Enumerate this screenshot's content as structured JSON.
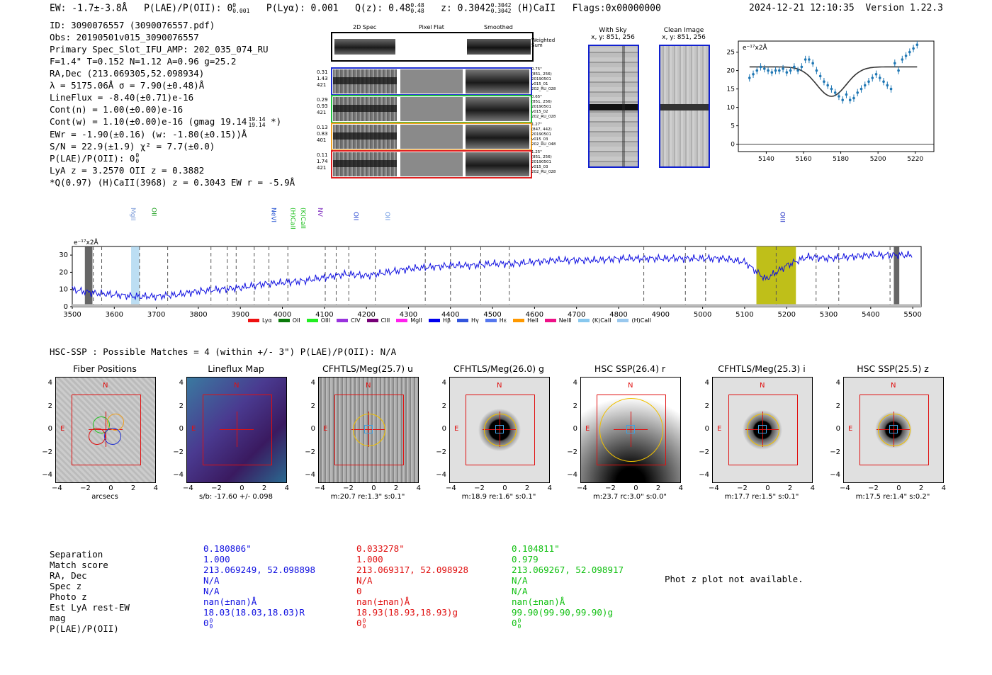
{
  "header": {
    "ew": "EW: -1.7±-3.8Å",
    "plae": "P(LAE)/P(OII): 0",
    "plae_sup": "0",
    "plae_sub": "0.001",
    "plya": "P(Lyα): 0.001",
    "qz": "Q(z): 0.48",
    "qz_sup": "0.48",
    "qz_sub": "0.48",
    "z": "z: 0.3042",
    "z_sup": "0.3042",
    "z_sub": "0.3042",
    "hcaii": "(H)CaII",
    "flags": "Flags:0x00000000",
    "timestamp": "2024-12-21 12:10:35",
    "version": "Version 1.22.3"
  },
  "info": [
    "ID: 3090076557 (3090076557.pdf)",
    "Obs: 20190501v015_3090076557",
    "Primary Spec_Slot_IFU_AMP: 202_035_074_RU",
    "F=1.4\"  T=0.152  N=1.12  A=0.96  g=25.2",
    "RA,Dec (213.069305,52.098934)",
    "λ = 5175.06Å  σ = 7.90(±0.48)Å",
    "LineFlux = -8.40(±0.71)e-16",
    "Cont(n) = 1.00(±0.00)e-16",
    "Cont(w) = 1.10(±0.00)e-16 (gmag 19.14",
    "EWr = -1.90(±0.16) (w: -1.80(±0.15))Å",
    "S/N = 22.9(±1.9)  χ² = 7.7(±0.0)",
    "P(LAE)/P(OII): 0",
    "LyA z = 3.2570  OII z = 0.3882",
    "*Q(0.97) (H)CaII(3968) z = 0.3043  EW r = -5.9Å"
  ],
  "info_extras": {
    "gmag_sup": "19.14",
    "gmag_sub": "19.14",
    "gmag_close": "*)",
    "plae_sup": "0",
    "plae_sub": "0"
  },
  "strips": {
    "headers": [
      "2D Spec",
      "Pixel Flat",
      "Smoothed"
    ],
    "weighted_label": "Weighted Sum",
    "rows": [
      {
        "left": [
          "0.31",
          "1.43",
          "421"
        ],
        "right": [
          "0.75\"",
          "(851, 256)",
          "20190501",
          "v015_01",
          "202_RU_028"
        ],
        "color": "#2030d0"
      },
      {
        "left": [
          "0.29",
          "0.93",
          "421"
        ],
        "right": [
          "0.65\"",
          "(851, 256)",
          "20190501",
          "v015_02",
          "202_RU_028"
        ],
        "color": "#20c040"
      },
      {
        "left": [
          "0.13",
          "0.83",
          "401"
        ],
        "right": [
          "1.27\"",
          "(847, 442)",
          "20190501",
          "v015_03",
          "202_RU_048"
        ],
        "color": "#f0a020"
      },
      {
        "left": [
          "0.11",
          "1.74",
          "421"
        ],
        "right": [
          "1.25\"",
          "(851, 256)",
          "20190501",
          "v015_03",
          "202_RU_028"
        ],
        "color": "#e02020"
      }
    ]
  },
  "cutouts_2d": {
    "with_sky": "With Sky",
    "clean": "Clean Image",
    "coords": "x, y: 851, 256"
  },
  "line_fit": {
    "ylabel": "e⁻¹⁷x2Å",
    "xticks": [
      "5140",
      "5160",
      "5180",
      "5200",
      "5220"
    ],
    "yticks": [
      "0",
      "5",
      "10",
      "15",
      "20",
      "25"
    ]
  },
  "spectrum": {
    "ylabel": "e⁻¹⁷x2Å",
    "xticks": [
      "3500",
      "3600",
      "3700",
      "3800",
      "3900",
      "4000",
      "4100",
      "4200",
      "4300",
      "4400",
      "4500",
      "4600",
      "4700",
      "4800",
      "4900",
      "5000",
      "5100",
      "5200",
      "5300",
      "5400",
      "5500"
    ],
    "yticks": [
      "0",
      "10",
      "20",
      "30"
    ],
    "lines_top": [
      {
        "name": "MgII",
        "color": "#7a9ad8"
      },
      {
        "name": "OII",
        "color": "#20a020"
      },
      {
        "name": "NeVI",
        "color": "#2050d0"
      },
      {
        "name": "(H)CaII",
        "color": "#20c020"
      },
      {
        "name": "(K)CaII",
        "color": "#20c020"
      },
      {
        "name": "NV",
        "color": "#8030c0"
      },
      {
        "name": "OII",
        "color": "#2040d0"
      },
      {
        "name": "OII",
        "color": "#6090e0"
      },
      {
        "name": "OIII",
        "color": "#1020c0"
      }
    ],
    "legend": [
      {
        "name": "Lyα",
        "color": "#ee1111"
      },
      {
        "name": "OII",
        "color": "#0a7a0a"
      },
      {
        "name": "OIII",
        "color": "#22ee22"
      },
      {
        "name": "CIV",
        "color": "#9933dd"
      },
      {
        "name": "CIII",
        "color": "#770077"
      },
      {
        "name": "MgII",
        "color": "#ff22ee"
      },
      {
        "name": "Hβ",
        "color": "#0000ee"
      },
      {
        "name": "Hγ",
        "color": "#3355dd"
      },
      {
        "name": "Hε",
        "color": "#5577ee"
      },
      {
        "name": "HeII",
        "color": "#ff9900"
      },
      {
        "name": "NeIII",
        "color": "#ee1188"
      },
      {
        "name": "(K)CaII",
        "color": "#88c8ee"
      },
      {
        "name": "(H)CaII",
        "color": "#99c8ee"
      }
    ]
  },
  "hsc_line": "HSC-SSP : Possible Matches = 4 (within +/- 3\")  P(LAE)/P(OII): N/A",
  "panels": [
    {
      "title": "Fiber Positions",
      "caption": "arcsecs"
    },
    {
      "title": "Lineflux Map",
      "caption": "s/b: -17.60 +/- 0.098"
    },
    {
      "title": "CFHTLS/Meg(25.7) u",
      "caption": "m:20.7  re:1.3\"  s:0.1\""
    },
    {
      "title": "CFHTLS/Meg(26.0) g",
      "caption": "m:18.9  re:1.6\"  s:0.1\""
    },
    {
      "title": "HSC SSP(26.4) r",
      "caption": "m:23.7 rc:3.0\"  s:0.0\""
    },
    {
      "title": "CFHTLS/Meg(25.3) i",
      "caption": "m:17.7  re:1.5\"  s:0.1\""
    },
    {
      "title": "HSC SSP(25.5) z",
      "caption": "m:17.5  re:1.4\"  s:0.2\""
    }
  ],
  "panel_ticks": [
    "4",
    "2",
    "0",
    "−2",
    "−4"
  ],
  "panel_xticks": [
    "−4",
    "−2",
    "0",
    "2",
    "4"
  ],
  "compass": {
    "n": "N",
    "e": "E"
  },
  "table": {
    "labels": [
      "Separation",
      "Match score",
      "RA, Dec",
      "Spec z",
      "Photo z",
      "Est LyA rest-EW",
      "mag",
      "P(LAE)/P(OII)"
    ],
    "columns": [
      {
        "color": "#1010e0",
        "values": [
          "0.180806\"",
          "1.000",
          "213.069249, 52.098898",
          "N/A",
          "N/A",
          "nan(±nan)Å",
          "18.03(18.03,18.03)R",
          "0"
        ]
      },
      {
        "color": "#e01010",
        "values": [
          "0.033278\"",
          "1.000",
          "213.069317, 52.098928",
          "N/A",
          "0",
          "nan(±nan)Å",
          "18.93(18.93,18.93)g",
          "0"
        ]
      },
      {
        "color": "#10c010",
        "values": [
          "0.104811\"",
          "0.979",
          "213.069267, 52.098917",
          "N/A",
          "N/A",
          "nan(±nan)Å",
          "99.90(99.90,99.90)g",
          "0"
        ]
      }
    ],
    "sup": "0",
    "sub": "0",
    "phot_z": "Phot z plot not available."
  },
  "chart_data": [
    {
      "type": "scatter",
      "title": "Line fit",
      "xlabel": "",
      "ylabel": "e⁻¹⁷x2Å",
      "xlim": [
        5125,
        5230
      ],
      "ylim": [
        -2,
        28
      ],
      "x": [
        5131,
        5133,
        5135,
        5137,
        5139,
        5141,
        5143,
        5145,
        5147,
        5149,
        5151,
        5153,
        5155,
        5157,
        5159,
        5161,
        5163,
        5165,
        5167,
        5169,
        5171,
        5173,
        5175,
        5177,
        5179,
        5181,
        5183,
        5185,
        5187,
        5189,
        5191,
        5193,
        5195,
        5197,
        5199,
        5201,
        5203,
        5205,
        5207,
        5209,
        5211,
        5213,
        5215,
        5217,
        5219,
        5221
      ],
      "values": [
        18,
        19,
        20,
        21,
        20.5,
        20,
        19.5,
        20,
        20,
        20.5,
        19.5,
        20,
        21,
        20,
        21,
        23,
        23,
        22,
        20,
        18.5,
        17,
        16,
        15,
        14,
        13,
        12,
        13.5,
        12,
        12.5,
        14,
        15,
        16,
        17,
        18,
        19,
        18,
        17,
        16,
        15,
        22,
        20,
        23,
        24,
        25,
        26,
        27
      ],
      "fit_center": 5175,
      "fit_sigma": 7.9,
      "fit_continuum": 21,
      "fit_depth": 8
    },
    {
      "type": "line",
      "title": "Spectrum",
      "xlabel": "",
      "ylabel": "e⁻¹⁷x2Å",
      "xlim": [
        3500,
        5520
      ],
      "ylim": [
        0,
        35
      ],
      "x": [
        3500,
        3550,
        3600,
        3650,
        3700,
        3750,
        3800,
        3850,
        3900,
        3950,
        4000,
        4050,
        4100,
        4150,
        4200,
        4250,
        4300,
        4350,
        4400,
        4450,
        4500,
        4550,
        4600,
        4650,
        4700,
        4750,
        4800,
        4850,
        4900,
        4950,
        5000,
        5050,
        5100,
        5150,
        5200,
        5250,
        5300,
        5350,
        5400,
        5450,
        5500
      ],
      "values": [
        10,
        8,
        7,
        6,
        6,
        7,
        9,
        10,
        11,
        13,
        14,
        15,
        17,
        19,
        18,
        20,
        22,
        23,
        24,
        24,
        25,
        25,
        26,
        27,
        27,
        27,
        28,
        28,
        28,
        28,
        28,
        28,
        26,
        16,
        24,
        29,
        28,
        29,
        30,
        30,
        30
      ],
      "highlight_regions": [
        [
          3530,
          3548
        ],
        [
          3640,
          3660
        ],
        [
          5128,
          5222
        ],
        [
          5455,
          5468
        ]
      ],
      "line_markers": [
        3550,
        3570,
        3660,
        3727,
        3830,
        3869,
        3890,
        3933,
        3968,
        4013,
        4102,
        4128,
        4158,
        4221,
        4340,
        4400,
        4472,
        4540,
        4860,
        4959,
        5007,
        5175,
        5270,
        5324,
        5446
      ]
    }
  ]
}
